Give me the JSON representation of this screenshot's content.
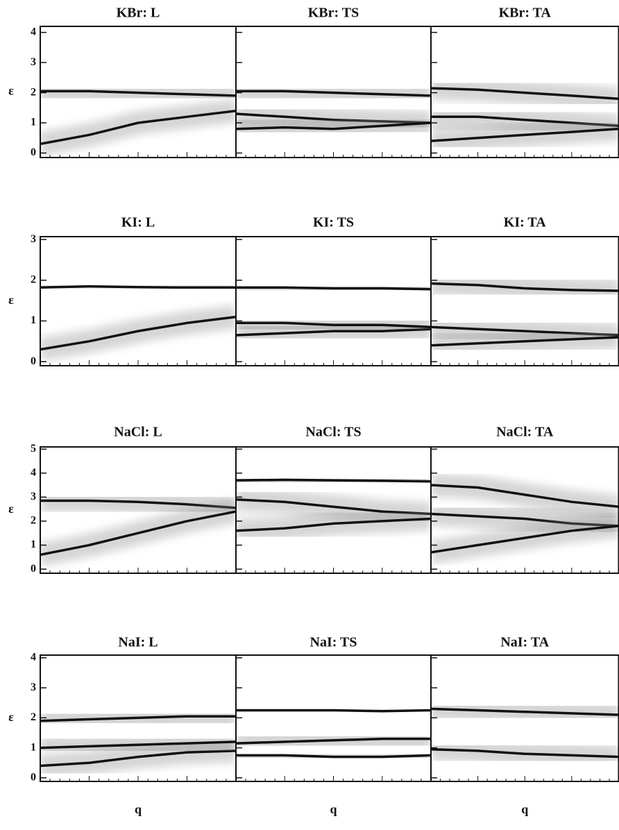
{
  "chart_data": [
    {
      "type": "line",
      "title": "KBr:  L",
      "ylabel": "ε",
      "categories": [
        null,
        null,
        null,
        null,
        null
      ],
      "ylim": [
        -0.15,
        4.2
      ],
      "yticks": [
        0,
        1,
        2,
        3,
        4
      ],
      "color": "#111111",
      "series": [
        {
          "values": [
            2.05,
            2.05,
            2.0,
            1.95,
            1.9
          ]
        },
        {
          "values": [
            0.3,
            0.6,
            1.0,
            1.2,
            1.4
          ]
        }
      ]
    },
    {
      "type": "line",
      "title": "KBr:  TS",
      "categories": [
        null,
        null,
        null,
        null,
        null
      ],
      "ylim": [
        -0.15,
        4.2
      ],
      "yticks": [
        0,
        1,
        2,
        3,
        4
      ],
      "color": "#111111",
      "series": [
        {
          "values": [
            2.05,
            2.05,
            2.0,
            1.95,
            1.9
          ]
        },
        {
          "values": [
            1.3,
            1.2,
            1.1,
            1.05,
            1.0
          ]
        },
        {
          "values": [
            0.8,
            0.85,
            0.8,
            0.9,
            1.0
          ]
        }
      ]
    },
    {
      "type": "line",
      "title": "KBr:  TA",
      "categories": [
        null,
        null,
        null,
        null,
        null
      ],
      "ylim": [
        -0.15,
        4.2
      ],
      "yticks": [
        0,
        1,
        2,
        3,
        4
      ],
      "color": "#111111",
      "series": [
        {
          "values": [
            2.15,
            2.1,
            2.0,
            1.9,
            1.8
          ]
        },
        {
          "values": [
            1.2,
            1.2,
            1.1,
            1.0,
            0.9
          ]
        },
        {
          "values": [
            0.4,
            0.5,
            0.6,
            0.7,
            0.8
          ]
        }
      ]
    },
    {
      "type": "line",
      "title": "KI:  L",
      "ylabel": "ε",
      "categories": [
        null,
        null,
        null,
        null,
        null
      ],
      "ylim": [
        -0.1,
        3.07
      ],
      "yticks": [
        0,
        1,
        2,
        3
      ],
      "color": "#111111",
      "series": [
        {
          "values": [
            1.82,
            1.85,
            1.83,
            1.82,
            1.82
          ]
        },
        {
          "values": [
            0.3,
            0.5,
            0.75,
            0.95,
            1.1
          ]
        }
      ]
    },
    {
      "type": "line",
      "title": "KI:  TS",
      "categories": [
        null,
        null,
        null,
        null,
        null
      ],
      "ylim": [
        -0.1,
        3.07
      ],
      "yticks": [
        0,
        1,
        2,
        3
      ],
      "color": "#111111",
      "series": [
        {
          "values": [
            1.82,
            1.82,
            1.8,
            1.8,
            1.78
          ]
        },
        {
          "values": [
            0.65,
            0.7,
            0.75,
            0.75,
            0.8
          ]
        },
        {
          "values": [
            0.95,
            0.95,
            0.9,
            0.9,
            0.85
          ]
        }
      ]
    },
    {
      "type": "line",
      "title": "KI:  TA",
      "categories": [
        null,
        null,
        null,
        null,
        null
      ],
      "ylim": [
        -0.1,
        3.07
      ],
      "yticks": [
        0,
        1,
        2,
        3
      ],
      "color": "#111111",
      "series": [
        {
          "values": [
            1.92,
            1.88,
            1.8,
            1.76,
            1.74
          ]
        },
        {
          "values": [
            0.85,
            0.8,
            0.75,
            0.7,
            0.65
          ]
        },
        {
          "values": [
            0.4,
            0.45,
            0.5,
            0.55,
            0.6
          ]
        }
      ]
    },
    {
      "type": "line",
      "title": "NaCl:  L",
      "ylabel": "ε",
      "categories": [
        null,
        null,
        null,
        null,
        null
      ],
      "ylim": [
        -0.17,
        5.09
      ],
      "yticks": [
        0,
        1,
        2,
        3,
        4,
        5
      ],
      "color": "#111111",
      "series": [
        {
          "values": [
            2.85,
            2.85,
            2.8,
            2.7,
            2.55
          ]
        },
        {
          "values": [
            0.6,
            1.0,
            1.5,
            2.0,
            2.4
          ]
        }
      ]
    },
    {
      "type": "line",
      "title": "NaCl:  TS",
      "categories": [
        null,
        null,
        null,
        null,
        null
      ],
      "ylim": [
        -0.17,
        5.09
      ],
      "yticks": [
        0,
        1,
        2,
        3,
        4,
        5
      ],
      "color": "#111111",
      "series": [
        {
          "values": [
            3.7,
            3.72,
            3.7,
            3.68,
            3.65
          ]
        },
        {
          "values": [
            2.9,
            2.8,
            2.6,
            2.4,
            2.3
          ]
        },
        {
          "values": [
            1.6,
            1.7,
            1.9,
            2.0,
            2.1
          ]
        }
      ]
    },
    {
      "type": "line",
      "title": "NaCl:  TA",
      "categories": [
        null,
        null,
        null,
        null,
        null
      ],
      "ylim": [
        -0.17,
        5.09
      ],
      "yticks": [
        0,
        1,
        2,
        3,
        4,
        5
      ],
      "color": "#111111",
      "series": [
        {
          "values": [
            3.5,
            3.4,
            3.1,
            2.8,
            2.6
          ]
        },
        {
          "values": [
            2.3,
            2.2,
            2.1,
            1.9,
            1.8
          ]
        },
        {
          "values": [
            0.7,
            1.0,
            1.3,
            1.6,
            1.8
          ]
        }
      ]
    },
    {
      "type": "line",
      "title": "NaI:  L",
      "ylabel": "ε",
      "xlabel": "q",
      "categories": [
        null,
        null,
        null,
        null,
        null
      ],
      "ylim": [
        -0.12,
        4.09
      ],
      "yticks": [
        0,
        1,
        2,
        3,
        4
      ],
      "color": "#111111",
      "series": [
        {
          "values": [
            1.9,
            1.95,
            2.0,
            2.05,
            2.05
          ]
        },
        {
          "values": [
            0.4,
            0.5,
            0.7,
            0.85,
            0.9
          ]
        },
        {
          "values": [
            1.0,
            1.05,
            1.1,
            1.15,
            1.2
          ]
        }
      ]
    },
    {
      "type": "line",
      "title": "NaI:  TS",
      "xlabel": "q",
      "categories": [
        null,
        null,
        null,
        null,
        null
      ],
      "ylim": [
        -0.12,
        4.09
      ],
      "yticks": [
        0,
        1,
        2,
        3,
        4
      ],
      "color": "#111111",
      "series": [
        {
          "values": [
            2.25,
            2.25,
            2.25,
            2.22,
            2.25
          ]
        },
        {
          "values": [
            0.75,
            0.75,
            0.7,
            0.7,
            0.75
          ]
        },
        {
          "values": [
            1.15,
            1.2,
            1.25,
            1.3,
            1.3
          ]
        }
      ]
    },
    {
      "type": "line",
      "title": "NaI:  TA",
      "xlabel": "q",
      "categories": [
        null,
        null,
        null,
        null,
        null
      ],
      "ylim": [
        -0.12,
        4.09
      ],
      "yticks": [
        0,
        1,
        2,
        3,
        4
      ],
      "color": "#111111",
      "series": [
        {
          "values": [
            2.3,
            2.25,
            2.2,
            2.15,
            2.1
          ]
        },
        {
          "values": [
            0.95,
            0.9,
            0.8,
            0.75,
            0.7
          ]
        }
      ]
    }
  ]
}
